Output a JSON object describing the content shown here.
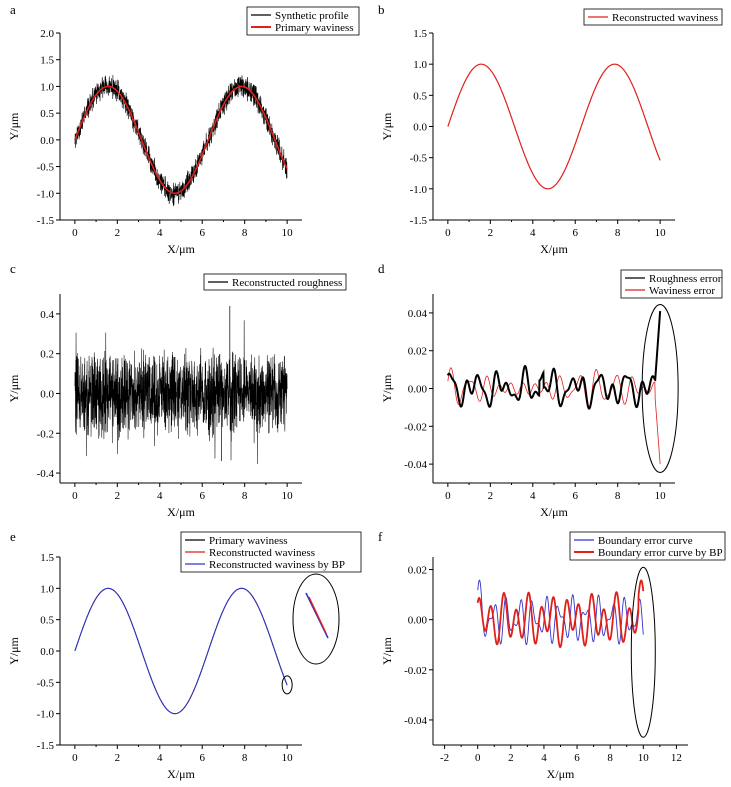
{
  "chart_data": [
    {
      "type": "line",
      "panel_label": "a",
      "xlabel": "X/μm",
      "ylabel": "Y/μm",
      "xlim": [
        -0.7,
        10.7
      ],
      "ylim": [
        -1.5,
        2.0
      ],
      "xticks": [
        0,
        2,
        4,
        6,
        8,
        10
      ],
      "yticks": [
        -1.5,
        -1.0,
        -0.5,
        0.0,
        0.5,
        1.0,
        1.5,
        2.0
      ],
      "legend_position": "top-right",
      "series": [
        {
          "name": "Synthetic profile",
          "color": "#000000",
          "function": "sin(x) + noise",
          "noise_amplitude": 0.25,
          "x_range": [
            0,
            10
          ]
        },
        {
          "name": "Primary waviness",
          "color": "#e0201b",
          "function": "sin(x)",
          "x_range": [
            0,
            10
          ]
        }
      ]
    },
    {
      "type": "line",
      "panel_label": "b",
      "xlabel": "X/μm",
      "ylabel": "Y/μm",
      "xlim": [
        -0.7,
        10.7
      ],
      "ylim": [
        -1.5,
        1.5
      ],
      "xticks": [
        0,
        2,
        4,
        6,
        8,
        10
      ],
      "yticks": [
        -1.5,
        -1.0,
        -0.5,
        0.0,
        0.5,
        1.0,
        1.5
      ],
      "legend_position": "top-right",
      "series": [
        {
          "name": "Reconstructed waviness",
          "color": "#e0201b",
          "function": "sin(x)",
          "x_range": [
            0,
            10
          ]
        }
      ]
    },
    {
      "type": "line",
      "panel_label": "c",
      "xlabel": "X/μm",
      "ylabel": "Y/μm",
      "xlim": [
        -0.7,
        10.7
      ],
      "ylim": [
        -0.45,
        0.5
      ],
      "xticks": [
        0,
        2,
        4,
        6,
        8,
        10
      ],
      "yticks": [
        -0.4,
        -0.2,
        0.0,
        0.2,
        0.4
      ],
      "legend_position": "top-right",
      "series": [
        {
          "name": "Reconstructed roughness",
          "color": "#000000",
          "function": "noise",
          "noise_amplitude": 0.15,
          "noise_extremes": [
            -0.34,
            0.44
          ],
          "x_range": [
            0,
            10
          ]
        }
      ]
    },
    {
      "type": "line",
      "panel_label": "d",
      "xlabel": "X/μm",
      "ylabel": "Y/μm",
      "xlim": [
        -0.7,
        10.7
      ],
      "ylim": [
        -0.05,
        0.05
      ],
      "xticks": [
        0,
        2,
        4,
        6,
        8,
        10
      ],
      "yticks": [
        -0.04,
        -0.02,
        0.0,
        0.02,
        0.04
      ],
      "legend_position": "top-right",
      "series": [
        {
          "name": "Roughness error",
          "color": "#000000",
          "x_range": [
            0,
            10
          ],
          "end_value": 0.041
        },
        {
          "name": "Waviness error",
          "color": "#e0201b",
          "x_range": [
            0,
            10
          ],
          "end_value": -0.04
        }
      ],
      "annotation": "ellipse around x = 10"
    },
    {
      "type": "line",
      "panel_label": "e",
      "xlabel": "X/μm",
      "ylabel": "Y/μm",
      "xlim": [
        -0.7,
        10.7
      ],
      "ylim": [
        -1.5,
        1.5
      ],
      "xticks": [
        0,
        2,
        4,
        6,
        8,
        10
      ],
      "yticks": [
        -1.5,
        -1.0,
        -0.5,
        0.0,
        0.5,
        1.0,
        1.5
      ],
      "legend_position": "top-right",
      "series": [
        {
          "name": "Primary waviness",
          "color": "#000000",
          "function": "sin(x)",
          "x_range": [
            0,
            10
          ]
        },
        {
          "name": "Reconstructed waviness",
          "color": "#e0201b",
          "function": "sin(x)",
          "x_range": [
            0,
            10
          ]
        },
        {
          "name": "Reconstructed waviness by BP",
          "color": "#3333cc",
          "function": "sin(x)",
          "x_range": [
            0,
            10
          ]
        }
      ],
      "annotation": "small ellipse at x = 10 with magnified inset"
    },
    {
      "type": "line",
      "panel_label": "f",
      "xlabel": "X/μm",
      "ylabel": "Y/μm",
      "xlim": [
        -2.7,
        12.7
      ],
      "ylim": [
        -0.05,
        0.025
      ],
      "xticks": [
        -2,
        0,
        2,
        4,
        6,
        8,
        10,
        12
      ],
      "yticks": [
        -0.04,
        -0.02,
        0.0,
        0.02
      ],
      "legend_position": "top-right",
      "series": [
        {
          "name": "Boundary error curve",
          "color": "#3333cc",
          "x_range": [
            0,
            10
          ]
        },
        {
          "name": "Boundary error curve by BP",
          "color": "#e0201b",
          "x_range": [
            0,
            10
          ]
        }
      ],
      "annotation": "ellipse around x = 10"
    }
  ]
}
